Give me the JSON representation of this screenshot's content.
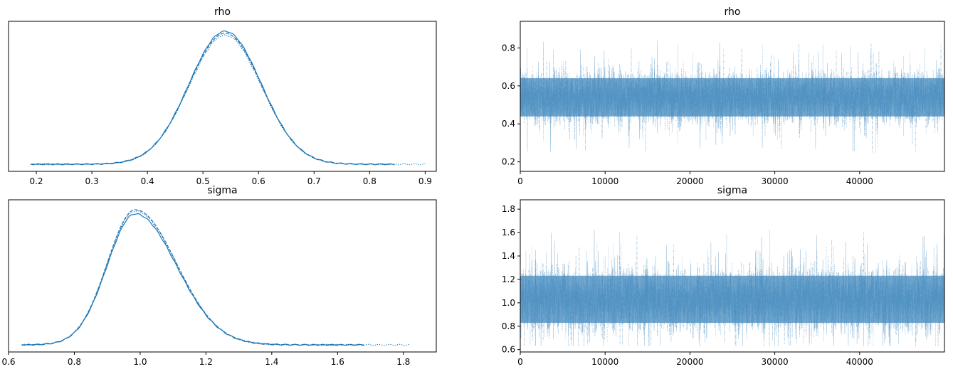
{
  "colors": {
    "primary": "#1f77b4",
    "trace": "#4a8ec0"
  },
  "chart_data": [
    {
      "type": "line",
      "title": "rho",
      "xlim": [
        0.15,
        0.92
      ],
      "xticks": [
        0.2,
        0.3,
        0.4,
        0.5,
        0.6,
        0.7,
        0.8,
        0.9
      ],
      "xtick_labels": [
        "0.2",
        "0.3",
        "0.4",
        "0.5",
        "0.6",
        "0.7",
        "0.8",
        "0.9"
      ],
      "yticks": [],
      "kde": {
        "mean": 0.54,
        "sd": 0.065
      },
      "chains": [
        {
          "style": "solid",
          "x_range": [
            0.19,
            0.845
          ],
          "peak_scale": 1.0
        },
        {
          "style": "dashed",
          "x_range": [
            0.19,
            0.84
          ],
          "peak_scale": 0.985
        },
        {
          "style": "dotted",
          "x_range": [
            0.19,
            0.9
          ],
          "peak_scale": 0.97
        }
      ]
    },
    {
      "type": "line",
      "title": "rho",
      "xlim": [
        0,
        50000
      ],
      "ylim": [
        0.15,
        0.94
      ],
      "xticks": [
        0,
        10000,
        20000,
        30000,
        40000
      ],
      "xtick_labels": [
        "0",
        "10000",
        "20000",
        "30000",
        "40000"
      ],
      "yticks": [
        0.2,
        0.4,
        0.6,
        0.8
      ],
      "ytick_labels": [
        "0.2",
        "0.4",
        "0.6",
        "0.8"
      ],
      "trace": {
        "mean": 0.54,
        "sd": 0.065,
        "min": 0.19,
        "max": 0.9,
        "draws": 50000
      }
    },
    {
      "type": "line",
      "title": "sigma",
      "xlim": [
        0.6,
        1.9
      ],
      "xticks": [
        0.6,
        0.8,
        1.0,
        1.2,
        1.4,
        1.6,
        1.8
      ],
      "xtick_labels": [
        "0.6",
        "0.8",
        "1.0",
        "1.2",
        "1.4",
        "1.6",
        "1.8"
      ],
      "yticks": [],
      "kde": {
        "mode": 0.985,
        "sd_left": 0.085,
        "sd_right": 0.125
      },
      "chains": [
        {
          "style": "solid",
          "x_range": [
            0.64,
            1.68
          ],
          "peak_scale": 0.97
        },
        {
          "style": "dashed",
          "x_range": [
            0.64,
            1.68
          ],
          "peak_scale": 1.0
        },
        {
          "style": "dotted",
          "x_range": [
            0.64,
            1.82
          ],
          "peak_scale": 0.99
        }
      ]
    },
    {
      "type": "line",
      "title": "sigma",
      "xlim": [
        0,
        50000
      ],
      "ylim": [
        0.58,
        1.88
      ],
      "xticks": [
        0,
        10000,
        20000,
        30000,
        40000
      ],
      "xtick_labels": [
        "0",
        "10000",
        "20000",
        "30000",
        "40000"
      ],
      "yticks": [
        0.6,
        0.8,
        1.0,
        1.2,
        1.4,
        1.6,
        1.8
      ],
      "ytick_labels": [
        "0.6",
        "0.8",
        "1.0",
        "1.2",
        "1.4",
        "1.6",
        "1.8"
      ],
      "trace": {
        "mean": 1.03,
        "sd": 0.13,
        "min": 0.63,
        "max": 1.82,
        "draws": 50000
      }
    }
  ]
}
